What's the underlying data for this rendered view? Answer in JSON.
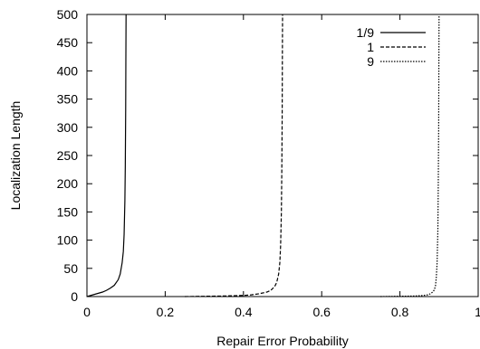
{
  "chart_data": {
    "type": "line",
    "title": "",
    "xlabel": "Repair Error Probability",
    "ylabel": "Localization Length",
    "xlim": [
      0,
      1
    ],
    "ylim": [
      0,
      500
    ],
    "x_ticks": [
      "0",
      "0.2",
      "0.4",
      "0.6",
      "0.8",
      "1"
    ],
    "y_ticks": [
      "0",
      "50",
      "100",
      "150",
      "200",
      "250",
      "300",
      "350",
      "400",
      "450",
      "500"
    ],
    "x_tick_values": [
      0,
      0.2,
      0.4,
      0.6,
      0.8,
      1.0
    ],
    "y_tick_values": [
      0,
      50,
      100,
      150,
      200,
      250,
      300,
      350,
      400,
      450,
      500
    ],
    "grid": false,
    "legend_position": "top-right",
    "series": [
      {
        "name": "1/9",
        "dash": "solid",
        "x": [
          0,
          0.01,
          0.02,
          0.03,
          0.04,
          0.05,
          0.06,
          0.07,
          0.08,
          0.085,
          0.09,
          0.093,
          0.095,
          0.097,
          0.098,
          0.099,
          0.0995,
          0.1
        ],
        "y": [
          0,
          2,
          4,
          6,
          8,
          11,
          15,
          20,
          30,
          40,
          60,
          80,
          110,
          170,
          230,
          330,
          420,
          500
        ]
      },
      {
        "name": "1",
        "dash": "dashed",
        "x": [
          0.25,
          0.3,
          0.35,
          0.4,
          0.42,
          0.44,
          0.46,
          0.47,
          0.48,
          0.485,
          0.49,
          0.493,
          0.495,
          0.497,
          0.498,
          0.499,
          0.4995,
          0.5
        ],
        "y": [
          0,
          0.5,
          1,
          2,
          3,
          5,
          8,
          11,
          18,
          25,
          40,
          60,
          90,
          150,
          220,
          320,
          420,
          500
        ]
      },
      {
        "name": "9",
        "dash": "dotted",
        "x": [
          0.75,
          0.8,
          0.84,
          0.86,
          0.87,
          0.875,
          0.88,
          0.885,
          0.888,
          0.891,
          0.893,
          0.895,
          0.897,
          0.898,
          0.899,
          0.8995,
          0.9
        ],
        "y": [
          0,
          0.5,
          1,
          2,
          3,
          4,
          6,
          9,
          12,
          20,
          35,
          60,
          120,
          200,
          300,
          410,
          500
        ]
      }
    ]
  }
}
